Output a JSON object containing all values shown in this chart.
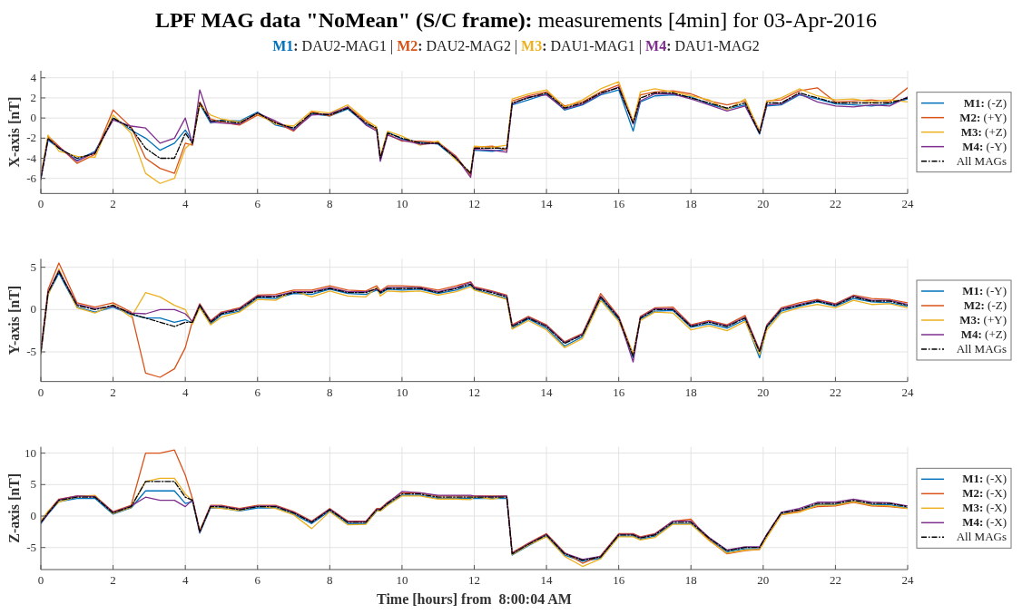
{
  "chart_data": [
    {
      "type": "line",
      "title": "LPF MAG data \"NoMean\" (S/C frame): measurements [4min] for 03-Apr-2016",
      "subtitle": "M1: DAU2-MAG1 | M2: DAU2-MAG2 | M3: DAU1-MAG1 | M4: DAU1-MAG2",
      "ylabel": "X-axis [nT]",
      "xlim": [
        0,
        24
      ],
      "xticks": [
        0,
        2,
        4,
        6,
        8,
        10,
        12,
        14,
        16,
        18,
        20,
        22,
        24
      ],
      "ylim": [
        -7.5,
        4.7
      ],
      "yticks": [
        -6,
        -4,
        -2,
        0,
        2,
        4
      ],
      "grid": true,
      "legend": "right",
      "line_style": "solid",
      "marker": "none",
      "x": [
        0,
        0.2,
        0.5,
        1,
        1.5,
        2,
        2.5,
        2.9,
        3.3,
        3.7,
        4,
        4.2,
        4.4,
        4.7,
        5,
        5.5,
        6,
        6.5,
        7,
        7.5,
        8,
        8.5,
        9,
        9.3,
        9.4,
        9.6,
        10,
        10.5,
        11,
        11.5,
        11.9,
        12,
        12.5,
        12.9,
        13.05,
        13.5,
        14,
        14.5,
        15,
        15.5,
        16,
        16.4,
        16.6,
        17,
        17.5,
        18,
        18.5,
        19,
        19.5,
        19.9,
        20.1,
        20.5,
        21,
        21.5,
        22,
        22.5,
        23,
        23.5,
        24
      ],
      "series": [
        {
          "name": "M1: (-Z)",
          "color": "#0072bd",
          "values": [
            -6,
            -2.2,
            -3,
            -4.2,
            -3.3,
            0,
            -1.2,
            -2,
            -3.2,
            -2.5,
            -1.2,
            -2.3,
            1.4,
            -0.5,
            -0.2,
            -0.3,
            0.6,
            -0.7,
            -1.1,
            0.4,
            0.2,
            0.9,
            -0.6,
            -1.1,
            -4.2,
            -1.4,
            -2.1,
            -2.4,
            -2.6,
            -4.1,
            -5.6,
            -3.2,
            -3.3,
            -3.1,
            1.3,
            1.8,
            2.4,
            0.8,
            1.3,
            2.3,
            2.8,
            -1.3,
            1.6,
            2.2,
            2.3,
            2.1,
            1.4,
            0.9,
            1.3,
            -1.6,
            1.2,
            1.3,
            2.3,
            1.9,
            1.4,
            1.3,
            1.2,
            1.4,
            1.9
          ]
        },
        {
          "name": "M2: (+Y)",
          "color": "#d95319",
          "values": [
            -5.8,
            -1.8,
            -2.8,
            -4.5,
            -3.6,
            0.8,
            -0.9,
            -4,
            -5,
            -5.5,
            -2.5,
            -2.7,
            1.6,
            -0.1,
            -0.4,
            -0.7,
            0.3,
            -0.4,
            -1.3,
            0.6,
            0.2,
            1.1,
            -0.3,
            -1.2,
            -4.1,
            -1.6,
            -2.3,
            -2.3,
            -2.4,
            -3.8,
            -5.7,
            -2.9,
            -2.8,
            -3.2,
            1.7,
            2.2,
            2.6,
            1.2,
            1.6,
            2.6,
            3.3,
            -0.4,
            2.3,
            2.6,
            2.7,
            2.4,
            1.7,
            1.3,
            1.7,
            -1.3,
            1.7,
            1.8,
            2.7,
            3,
            1.6,
            1.7,
            1.8,
            1.6,
            3
          ]
        },
        {
          "name": "M3: (+Z)",
          "color": "#edb120",
          "values": [
            -5.9,
            -1.7,
            -3.3,
            -3.8,
            -3.9,
            0.3,
            -1.5,
            -5.5,
            -6.5,
            -6,
            -3,
            -2.4,
            1.3,
            0.3,
            -0.1,
            -0.4,
            0.4,
            -0.6,
            -0.8,
            0.7,
            0.5,
            1.3,
            -0.2,
            -0.9,
            -3.8,
            -1.3,
            -1.8,
            -2.7,
            -2.3,
            -4.2,
            -5.4,
            -2.8,
            -2.9,
            -2.7,
            1.9,
            2.4,
            2.8,
            1.1,
            1.8,
            2.9,
            3.6,
            -0.3,
            2.6,
            2.9,
            2.6,
            2.2,
            1.8,
            0.8,
            1.9,
            -1.4,
            1.6,
            2,
            2.9,
            2.2,
            1.8,
            1.9,
            1.6,
            1.8,
            1.6
          ]
        },
        {
          "name": "M4: (-Y)",
          "color": "#7e2f8e",
          "values": [
            -6.1,
            -2.1,
            -2.9,
            -4.3,
            -3.4,
            -0.2,
            -0.8,
            -1,
            -2.5,
            -2,
            0,
            -2.6,
            2.8,
            -0.4,
            -0.5,
            -0.6,
            0.5,
            -0.3,
            -1.2,
            0.3,
            0.4,
            1.1,
            -0.7,
            -1.3,
            -4.3,
            -1.7,
            -2.2,
            -2.6,
            -2.5,
            -3.9,
            -5.9,
            -3.1,
            -3.2,
            -3.4,
            1.4,
            2.1,
            2.3,
            0.9,
            1.4,
            2.4,
            3.1,
            -0.6,
            1.7,
            2.4,
            2.4,
            1.9,
            1.3,
            0.7,
            1.2,
            -1.5,
            1.3,
            1.4,
            2.4,
            1.6,
            1.2,
            1.1,
            1.3,
            1.2,
            2.1
          ]
        },
        {
          "name": "All MAGs",
          "color": "#000000",
          "line_style": "dashed",
          "values": [
            -6,
            -2,
            -3,
            -4,
            -3.5,
            0,
            -1,
            -3,
            -4,
            -4,
            -1.5,
            -2.5,
            1.5,
            -0.3,
            -0.3,
            -0.5,
            0.5,
            -0.5,
            -1,
            0.5,
            0.3,
            1,
            -0.5,
            -1,
            -4,
            -1.5,
            -2,
            -2.5,
            -2.5,
            -4,
            -5.5,
            -3,
            -3,
            -3,
            1.5,
            2,
            2.5,
            1,
            1.5,
            2.5,
            3,
            -0.5,
            2,
            2.5,
            2.5,
            2,
            1.5,
            1,
            1.5,
            -1.5,
            1.5,
            1.5,
            2.5,
            2,
            1.5,
            1.5,
            1.5,
            1.5,
            2
          ]
        }
      ]
    },
    {
      "type": "line",
      "ylabel": "Y-axis [nT]",
      "xlim": [
        0,
        24
      ],
      "xticks": [
        0,
        2,
        4,
        6,
        8,
        10,
        12,
        14,
        16,
        18,
        20,
        22,
        24
      ],
      "ylim": [
        -8.5,
        6
      ],
      "yticks": [
        -5,
        0,
        5
      ],
      "grid": true,
      "legend": "right",
      "line_style": "solid",
      "marker": "none",
      "x": [
        0,
        0.2,
        0.5,
        1,
        1.5,
        2,
        2.5,
        2.9,
        3.3,
        3.7,
        4,
        4.2,
        4.4,
        4.7,
        5,
        5.5,
        6,
        6.5,
        7,
        7.5,
        8,
        8.5,
        9,
        9.3,
        9.4,
        9.6,
        10,
        10.5,
        11,
        11.5,
        11.9,
        12,
        12.5,
        12.9,
        13.05,
        13.5,
        14,
        14.5,
        15,
        15.5,
        16,
        16.4,
        16.6,
        17,
        17.5,
        18,
        18.5,
        19,
        19.5,
        19.9,
        20.1,
        20.5,
        21,
        21.5,
        22,
        22.5,
        23,
        23.5,
        24
      ],
      "series": [
        {
          "name": "M1: (-Y)",
          "color": "#0072bd",
          "values": [
            -5.2,
            1.8,
            4.3,
            0.3,
            -0.3,
            0.3,
            -0.6,
            -1,
            -1,
            -1.5,
            -1.2,
            -1.6,
            0.4,
            -1.7,
            -0.6,
            -0.2,
            1.4,
            1.3,
            1.9,
            1.8,
            2.4,
            1.9,
            1.8,
            2.3,
            1.9,
            2.4,
            2.3,
            2.4,
            1.9,
            2.3,
            2.9,
            2.4,
            1.8,
            1.3,
            -2.2,
            -1.1,
            -2.2,
            -4.3,
            -3.2,
            1.3,
            -1.2,
            -5.7,
            -1.1,
            -0.2,
            -0.1,
            -2.1,
            -1.7,
            -2.2,
            -1.2,
            -5.7,
            -2.1,
            -0.2,
            0.4,
            0.9,
            0.4,
            1.3,
            0.9,
            0.8,
            0.4
          ]
        },
        {
          "name": "M2: (-Z)",
          "color": "#d95319",
          "values": [
            -4.8,
            2.4,
            5.5,
            0.8,
            0.3,
            0.8,
            -0.3,
            -7.5,
            -8,
            -7,
            -4.5,
            -1.3,
            0.7,
            -1.3,
            -0.3,
            0.2,
            1.7,
            1.8,
            2.3,
            2.3,
            2.8,
            2.3,
            2.2,
            2.8,
            2.2,
            2.8,
            2.8,
            2.7,
            2.3,
            2.8,
            3.3,
            2.7,
            2.2,
            1.7,
            -1.8,
            -0.8,
            -1.8,
            -3.8,
            -2.8,
            1.9,
            -0.8,
            -5.3,
            -0.8,
            0.2,
            0.3,
            -1.8,
            -1.3,
            -1.8,
            -0.7,
            -4.8,
            -1.8,
            0.2,
            0.8,
            1.2,
            0.7,
            1.7,
            1.3,
            1.2,
            0.8
          ]
        },
        {
          "name": "M3: (+Y)",
          "color": "#edb120",
          "values": [
            -5.3,
            1.7,
            4.8,
            0.2,
            -0.4,
            0.6,
            -0.9,
            2,
            1.5,
            0.5,
            0,
            -1.7,
            0.2,
            -1.8,
            -0.9,
            -0.3,
            1.2,
            1.1,
            2.2,
            1.5,
            2.2,
            1.6,
            1.5,
            2.6,
            1.6,
            2.2,
            2.1,
            2.2,
            1.7,
            2.1,
            2.7,
            2.3,
            1.7,
            1.2,
            -2.3,
            -1.3,
            -2.4,
            -4.5,
            -3.4,
            1.1,
            -1.4,
            -5.2,
            -1.3,
            -0.3,
            -0.4,
            -2.4,
            -1.9,
            -2.5,
            -1.4,
            -5.3,
            -2.4,
            -0.4,
            0.2,
            0.6,
            0.2,
            1.1,
            0.6,
            0.7,
            0.2
          ]
        },
        {
          "name": "M4: (+Z)",
          "color": "#7e2f8e",
          "values": [
            -5.1,
            2.1,
            4.6,
            0.6,
            0.1,
            0.4,
            -0.4,
            -0.5,
            0,
            0,
            -0.5,
            -1.4,
            0.6,
            -1.4,
            -0.4,
            0.1,
            1.6,
            1.6,
            2.1,
            2.1,
            2.6,
            2.1,
            2.1,
            2.4,
            2.1,
            2.6,
            2.6,
            2.6,
            2.1,
            2.6,
            3.2,
            2.6,
            2.1,
            1.6,
            -1.9,
            -0.9,
            -1.9,
            -3.9,
            -2.9,
            1.6,
            -0.9,
            -6.2,
            -0.9,
            0.1,
            0.1,
            -1.9,
            -1.4,
            -1.9,
            -0.9,
            -4.9,
            -1.9,
            0.1,
            0.6,
            1.1,
            0.6,
            1.6,
            1.1,
            1.1,
            0.6
          ]
        },
        {
          "name": "All MAGs",
          "color": "#000000",
          "line_style": "dashed",
          "values": [
            -5,
            2,
            4.5,
            0.5,
            0,
            0.5,
            -0.5,
            -1,
            -1.5,
            -2,
            -1.5,
            -1.5,
            0.5,
            -1.5,
            -0.5,
            0,
            1.5,
            1.5,
            2,
            2,
            2.5,
            2,
            2,
            2.5,
            2,
            2.5,
            2.5,
            2.5,
            2,
            2.5,
            3,
            2.5,
            2,
            1.5,
            -2,
            -1,
            -2,
            -4,
            -3,
            1.5,
            -1,
            -5.5,
            -1,
            0,
            0,
            -2,
            -1.5,
            -2,
            -1,
            -5,
            -2,
            0,
            0.5,
            1,
            0.5,
            1.5,
            1,
            1,
            0.5
          ]
        }
      ]
    },
    {
      "type": "line",
      "ylabel": "Z-axis [nT]",
      "xlabel": "Time [hours] from  8:00:04 AM",
      "xlim": [
        0,
        24
      ],
      "xticks": [
        0,
        2,
        4,
        6,
        8,
        10,
        12,
        14,
        16,
        18,
        20,
        22,
        24
      ],
      "ylim": [
        -8.5,
        11
      ],
      "yticks": [
        -5,
        0,
        5,
        10
      ],
      "grid": true,
      "legend": "right",
      "line_style": "solid",
      "marker": "none",
      "x": [
        0,
        0.2,
        0.5,
        1,
        1.5,
        2,
        2.5,
        2.9,
        3.3,
        3.7,
        4,
        4.2,
        4.4,
        4.7,
        5,
        5.5,
        6,
        6.5,
        7,
        7.5,
        8,
        8.5,
        9,
        9.3,
        9.4,
        9.6,
        10,
        10.5,
        11,
        11.5,
        11.9,
        12,
        12.5,
        12.9,
        13.05,
        13.5,
        14,
        14.5,
        15,
        15.5,
        16,
        16.4,
        16.6,
        17,
        17.5,
        18,
        18.5,
        19,
        19.5,
        19.9,
        20.1,
        20.5,
        21,
        21.5,
        22,
        22.5,
        23,
        23.5,
        24
      ],
      "series": [
        {
          "name": "M1: (-X)",
          "color": "#0072bd",
          "values": [
            -1.2,
            0.3,
            2.3,
            2.8,
            2.8,
            0.3,
            1.3,
            4,
            4,
            4,
            2,
            2.3,
            -2.7,
            1.3,
            1.3,
            0.8,
            1.3,
            1.3,
            0.3,
            -1.2,
            0.8,
            -1.2,
            -1.2,
            0.8,
            0.8,
            1.8,
            3.3,
            3.3,
            2.8,
            2.8,
            2.8,
            2.8,
            2.8,
            2.8,
            -6.2,
            -4.7,
            -3.2,
            -6.2,
            -7.2,
            -6.7,
            -3.2,
            -3.2,
            -3.7,
            -3.2,
            -1.2,
            -1.2,
            -3.7,
            -5.7,
            -5.2,
            -5.2,
            -3.2,
            0.3,
            0.8,
            1.8,
            1.8,
            2.3,
            1.8,
            1.8,
            1.3
          ]
        },
        {
          "name": "M2: (-X)",
          "color": "#d95319",
          "values": [
            -0.8,
            0.7,
            2.7,
            3.2,
            3.2,
            0.7,
            1.7,
            10,
            10,
            10.5,
            6.5,
            2.7,
            -2.3,
            1.7,
            1.7,
            1.2,
            1.7,
            1.7,
            0.7,
            -0.8,
            1.2,
            -0.8,
            -0.8,
            1.2,
            1.2,
            2.2,
            3.7,
            3.7,
            3.2,
            3.2,
            3.2,
            3.2,
            3.2,
            3.2,
            -5.8,
            -4.3,
            -2.8,
            -5.8,
            -7.5,
            -6.3,
            -2.8,
            -2.8,
            -3.3,
            -2.8,
            -0.8,
            -0.5,
            -3.8,
            -6,
            -5.5,
            -5.3,
            -3.3,
            0.2,
            0.8,
            1.5,
            1.6,
            2.2,
            1.6,
            1.5,
            1.2
          ]
        },
        {
          "name": "M3: (-X)",
          "color": "#edb120",
          "values": [
            -0.9,
            0.8,
            2.2,
            3.1,
            3.3,
            0.4,
            1.4,
            5.5,
            6,
            6,
            3.5,
            2.4,
            -2.4,
            1.4,
            1.2,
            0.9,
            1.6,
            1.2,
            0.2,
            -2,
            0.7,
            -1.4,
            -1.3,
            0.9,
            0.8,
            1.7,
            3.2,
            3.2,
            2.7,
            2.7,
            2.6,
            3.1,
            2.7,
            3.2,
            -6.1,
            -4.6,
            -3.3,
            -6.4,
            -8,
            -6.8,
            -3.3,
            -3.3,
            -3.8,
            -3.4,
            -1.3,
            -1.3,
            -3.9,
            -5.9,
            -5.4,
            -5.3,
            -3.4,
            0.2,
            0.6,
            1.7,
            1.7,
            2.3,
            1.7,
            1.6,
            1.2
          ]
        },
        {
          "name": "M4: (-X)",
          "color": "#7e2f8e",
          "values": [
            -1.1,
            0.4,
            2.6,
            3.2,
            3.1,
            0.6,
            1.6,
            3,
            2.5,
            2.5,
            1.5,
            2.6,
            -2.6,
            1.6,
            1.6,
            1.1,
            1.6,
            1.6,
            0.6,
            -0.9,
            1.1,
            -0.9,
            -0.9,
            1.1,
            1.1,
            2.1,
            3.9,
            3.7,
            3.3,
            3.3,
            3.3,
            3.2,
            3.1,
            3.2,
            -5.9,
            -4.4,
            -2.9,
            -5.9,
            -6.9,
            -6.4,
            -2.9,
            -2.9,
            -3.4,
            -2.9,
            -0.8,
            -0.8,
            -3.4,
            -5.4,
            -4.9,
            -4.9,
            -2.9,
            0.6,
            1.2,
            2.2,
            2.2,
            2.7,
            2.2,
            2.1,
            1.6
          ]
        },
        {
          "name": "All MAGs",
          "color": "#000000",
          "line_style": "dashed",
          "values": [
            -1,
            0.5,
            2.5,
            3,
            3,
            0.5,
            1.5,
            5.5,
            5.5,
            5.5,
            3,
            2.5,
            -2.5,
            1.5,
            1.5,
            1,
            1.5,
            1.5,
            0.5,
            -1,
            1,
            -1,
            -1,
            1,
            1,
            2,
            3.5,
            3.5,
            3,
            3,
            3,
            3,
            3,
            3,
            -6,
            -4.5,
            -3,
            -6,
            -7,
            -6.5,
            -3,
            -3,
            -3.5,
            -3,
            -1,
            -1,
            -3.5,
            -5.5,
            -5,
            -5,
            -3,
            0.5,
            1,
            2,
            2,
            2.5,
            2,
            2,
            1.5
          ]
        }
      ]
    }
  ]
}
